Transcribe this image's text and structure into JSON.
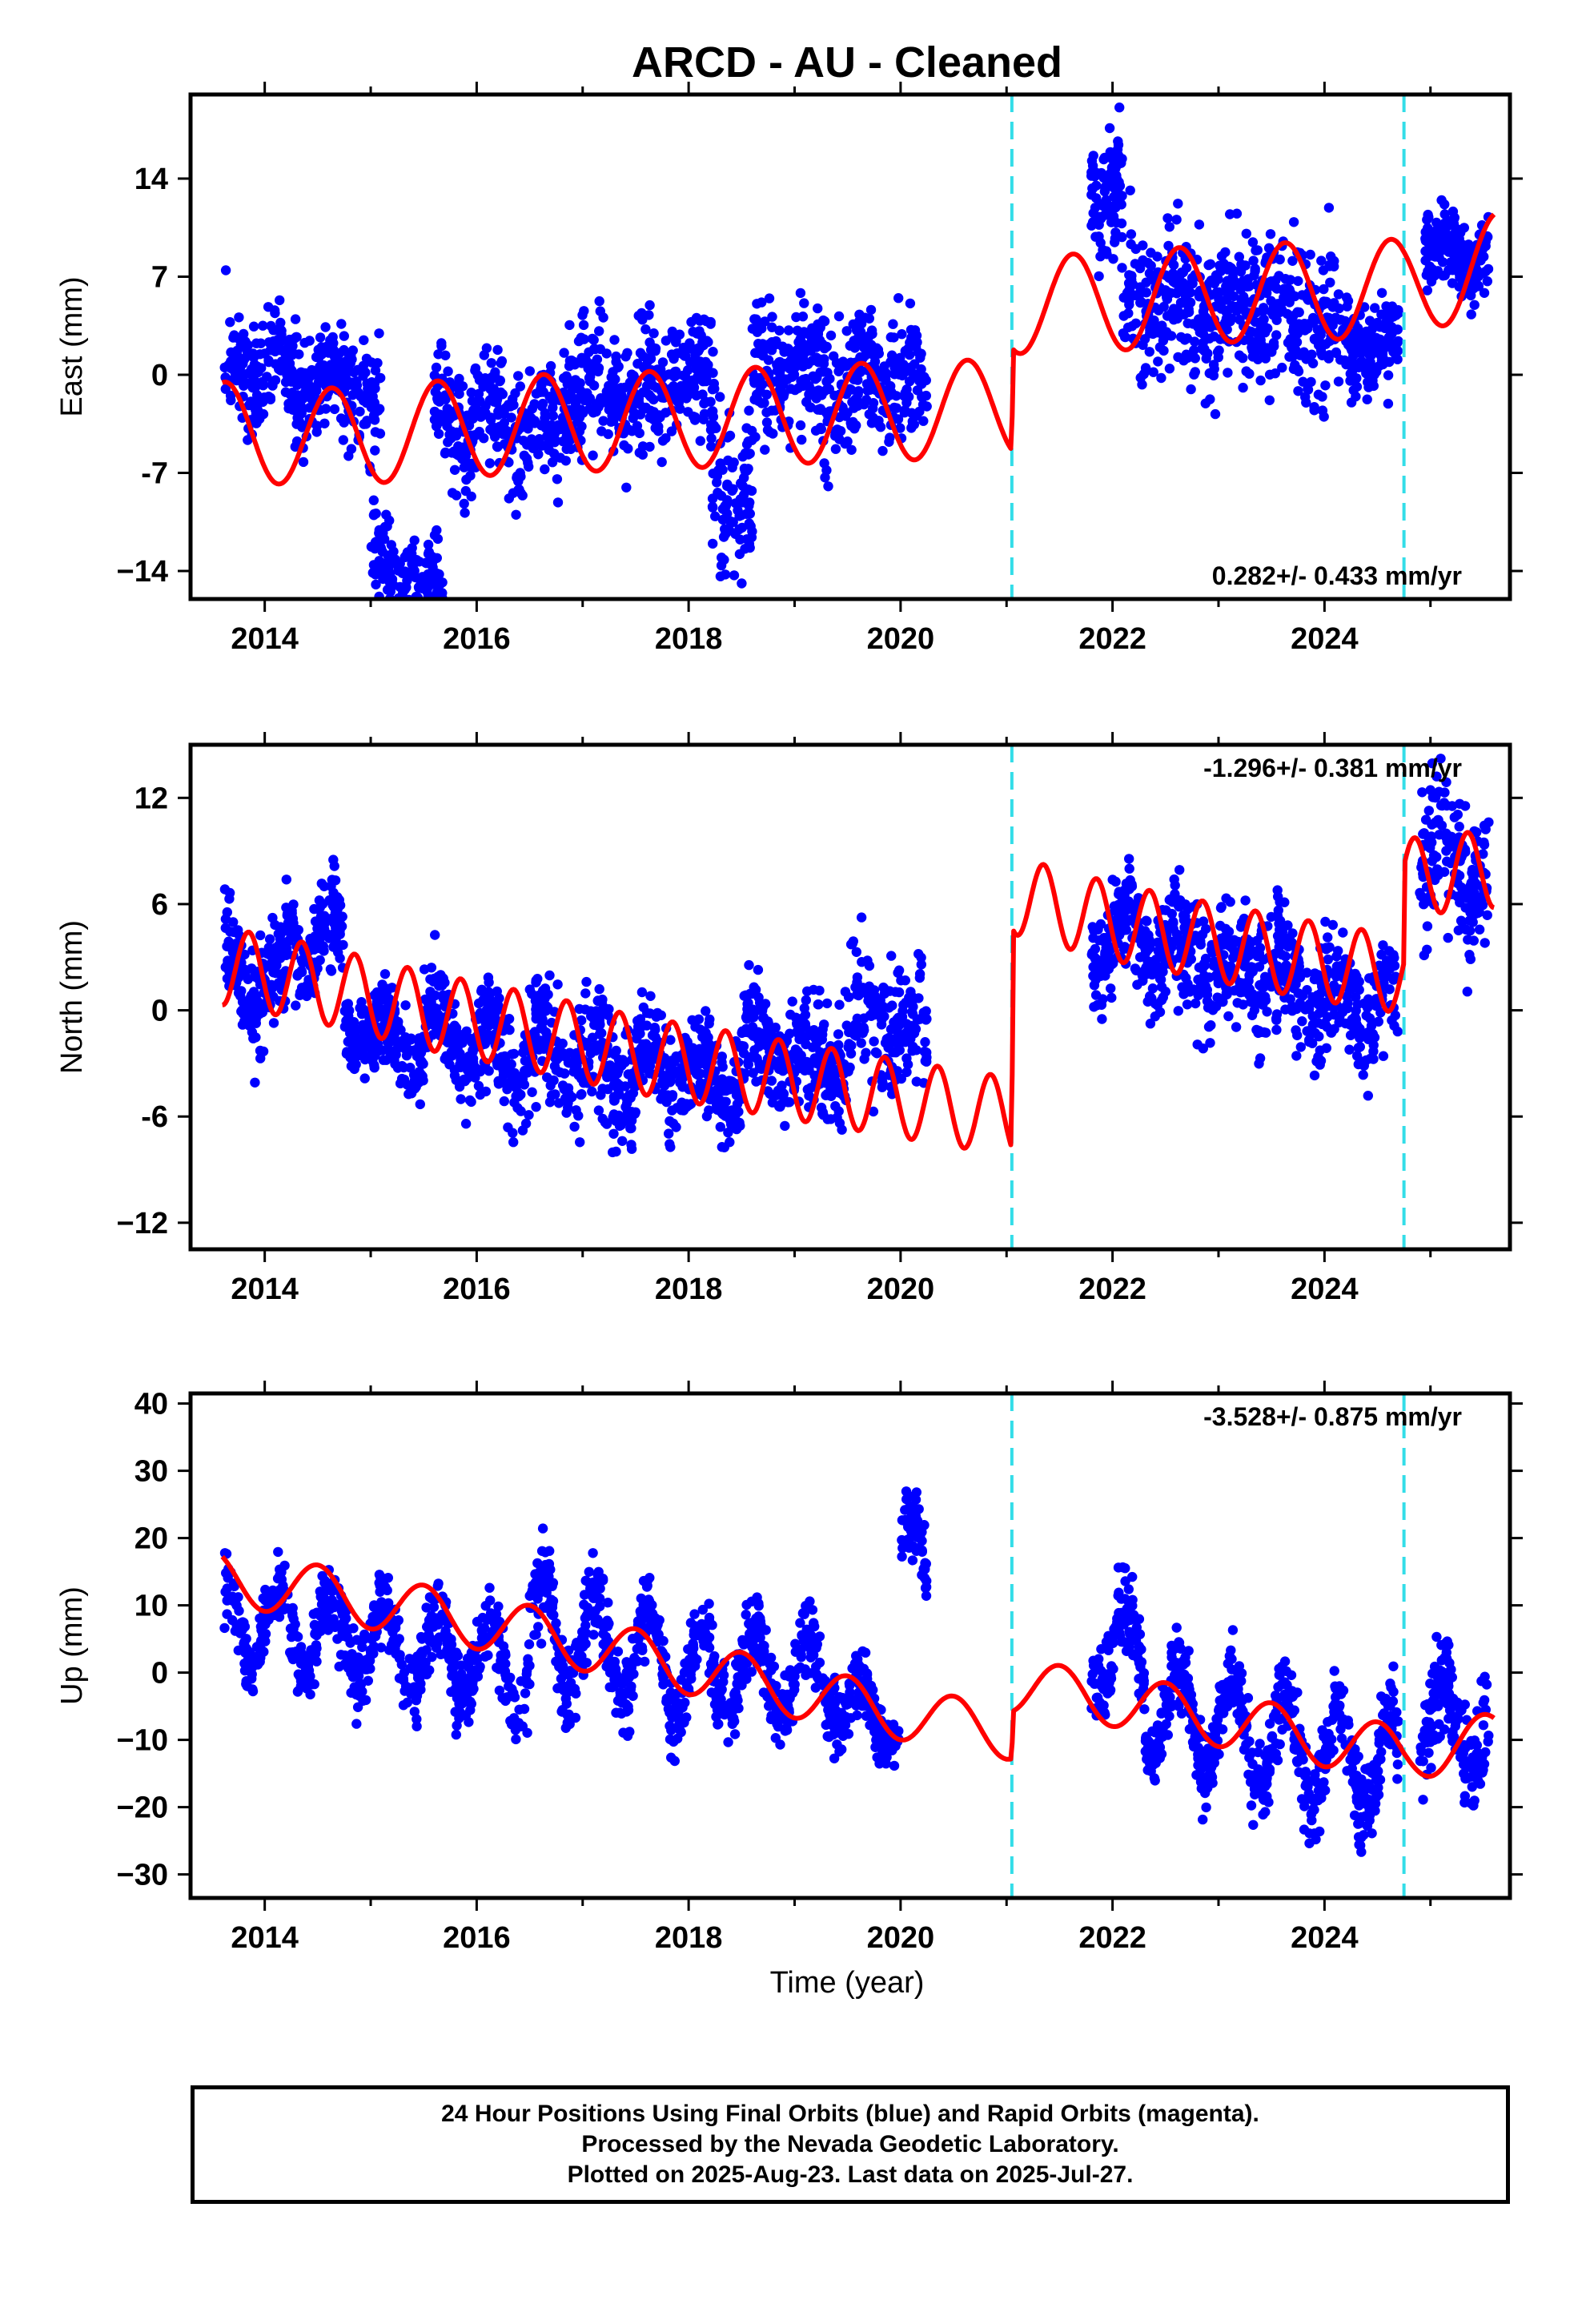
{
  "chart_data": {
    "title": "ARCD  - AU - Cleaned",
    "xlabel": "Time (year)",
    "x_ticks": [
      "2014",
      "2016",
      "2018",
      "2020",
      "2022",
      "2024"
    ],
    "xlim": [
      2013.3,
      2025.75
    ],
    "vertical_markers": {
      "color": "#33dde8",
      "x": [
        2021.05,
        2024.75
      ]
    },
    "colors": {
      "observed": "#0000ff",
      "model": "#ff0000",
      "frame": "#000000"
    },
    "panels": [
      {
        "type": "scatter",
        "ylabel": "East (mm)",
        "ylim": [
          -16,
          20
        ],
        "y_ticks": [
          -14,
          -7,
          0,
          7,
          14
        ],
        "y_tick_labels": [
          "−14",
          "-7",
          "0",
          "7",
          "14"
        ],
        "rate_text": "0.282+/- 0.433 mm/yr",
        "rate_position": "bottom-right",
        "model_series": {
          "name": "",
          "trend": [
            [
              2013.6,
              -4.0
            ],
            [
              2014.5,
              -4.5
            ],
            [
              2015.5,
              -4.0
            ],
            [
              2016.5,
              -3.5
            ],
            [
              2017.5,
              -3.3
            ],
            [
              2018.5,
              -3.0
            ],
            [
              2019.5,
              -2.7
            ],
            [
              2020.5,
              -2.5
            ],
            [
              2021.05,
              -2.3
            ],
            [
              2021.06,
              5.0
            ],
            [
              2022.0,
              5.2
            ],
            [
              2023.0,
              5.8
            ],
            [
              2024.0,
              6.0
            ],
            [
              2024.75,
              6.2
            ],
            [
              2025.6,
              8.0
            ]
          ],
          "amplitude": 3.5,
          "period": 1.0,
          "phase": 0.62
        },
        "observed_clusters": [
          [
            2013.62,
            2014.75,
            0.0,
            4.0,
            -6.0,
            3.0,
            300
          ],
          [
            2014.75,
            2015.1,
            -1.0,
            5.0,
            -5.0,
            2.0,
            80
          ],
          [
            2015.0,
            2015.7,
            -14.5,
            4.0,
            -10.0,
            0.0,
            160
          ],
          [
            2015.6,
            2016.8,
            -3.5,
            4.5,
            -5.0,
            3.0,
            300
          ],
          [
            2016.8,
            2017.8,
            -1.0,
            5.0,
            -5.0,
            2.0,
            260
          ],
          [
            2017.8,
            2018.25,
            0.0,
            4.5,
            -5.0,
            2.0,
            120
          ],
          [
            2018.2,
            2018.6,
            -8.0,
            7.0,
            -5.0,
            2.0,
            100
          ],
          [
            2018.6,
            2019.6,
            0.0,
            5.5,
            -5.0,
            1.5,
            260
          ],
          [
            2019.6,
            2020.25,
            0.0,
            5.0,
            -5.0,
            1.5,
            160
          ],
          [
            2021.8,
            2022.1,
            13.0,
            5.0,
            -5.0,
            2.0,
            100
          ],
          [
            2022.1,
            2023.1,
            5.0,
            6.0,
            -4.0,
            2.0,
            260
          ],
          [
            2023.1,
            2024.1,
            4.5,
            6.0,
            -5.0,
            2.0,
            260
          ],
          [
            2024.1,
            2024.7,
            2.0,
            4.0,
            -3.0,
            1.5,
            150
          ],
          [
            2024.95,
            2025.55,
            8.5,
            3.0,
            -3.0,
            2.0,
            180
          ]
        ]
      },
      {
        "type": "scatter",
        "ylabel": "North (mm)",
        "ylim": [
          -13.5,
          15
        ],
        "y_ticks": [
          -12,
          -6,
          0,
          6,
          12
        ],
        "y_tick_labels": [
          "−12",
          "-6",
          "0",
          "6",
          "12"
        ],
        "rate_text": "-1.296+/- 0.381 mm/yr",
        "rate_position": "top-right",
        "model_series": {
          "name": "",
          "trend": [
            [
              2013.6,
              2.5
            ],
            [
              2014.5,
              1.5
            ],
            [
              2015.5,
              0.0
            ],
            [
              2016.5,
              -1.2
            ],
            [
              2017.5,
              -2.5
            ],
            [
              2018.5,
              -3.5
            ],
            [
              2019.5,
              -4.5
            ],
            [
              2020.5,
              -5.5
            ],
            [
              2021.05,
              -6.0
            ],
            [
              2021.06,
              6.5
            ],
            [
              2022.0,
              5.0
            ],
            [
              2023.0,
              3.8
            ],
            [
              2024.0,
              2.7
            ],
            [
              2024.75,
              2.0
            ],
            [
              2024.76,
              7.5
            ],
            [
              2025.6,
              8.0
            ]
          ],
          "amplitude": 2.2,
          "period": 0.5,
          "phase": 0.55
        },
        "observed_clusters": [
          [
            2013.62,
            2014.2,
            1.5,
            3.0,
            -5.0,
            3.0,
            180
          ],
          [
            2014.2,
            2014.75,
            4.0,
            3.0,
            -4.0,
            3.0,
            150
          ],
          [
            2014.75,
            2015.5,
            -1.5,
            2.5,
            -7.0,
            2.0,
            200
          ],
          [
            2015.5,
            2016.5,
            -2.0,
            3.0,
            -8.0,
            3.0,
            260
          ],
          [
            2016.5,
            2017.5,
            -3.0,
            4.0,
            -9.0,
            3.0,
            260
          ],
          [
            2017.5,
            2018.5,
            -3.5,
            3.0,
            -6.0,
            2.0,
            260
          ],
          [
            2018.5,
            2019.5,
            -2.5,
            3.5,
            -5.0,
            2.5,
            260
          ],
          [
            2019.5,
            2020.25,
            -1.0,
            4.5,
            -3.0,
            2.0,
            170
          ],
          [
            2021.8,
            2022.6,
            4.0,
            3.0,
            -3.0,
            3.0,
            220
          ],
          [
            2022.6,
            2023.6,
            2.5,
            4.0,
            -3.0,
            2.5,
            260
          ],
          [
            2023.6,
            2024.7,
            0.5,
            3.5,
            -4.0,
            3.0,
            260
          ],
          [
            2024.9,
            2025.55,
            8.0,
            4.5,
            -6.0,
            3.0,
            170
          ]
        ]
      },
      {
        "type": "scatter",
        "ylabel": "Up (mm)",
        "ylim": [
          -33.5,
          41.5
        ],
        "y_ticks": [
          -30,
          -20,
          -10,
          0,
          10,
          20,
          30,
          40
        ],
        "y_tick_labels": [
          "−30",
          "−20",
          "−10",
          "0",
          "10",
          "20",
          "30",
          "40"
        ],
        "rate_text": "-3.528+/- 0.875 mm/yr",
        "rate_position": "top-right",
        "model_series": {
          "name": "",
          "trend": [
            [
              2013.6,
              14.0
            ],
            [
              2014.5,
              12.0
            ],
            [
              2015.5,
              9.0
            ],
            [
              2016.5,
              6.0
            ],
            [
              2017.5,
              2.5
            ],
            [
              2018.5,
              -1.0
            ],
            [
              2019.5,
              -4.5
            ],
            [
              2020.5,
              -7.5
            ],
            [
              2021.05,
              -9.0
            ],
            [
              2021.06,
              -2.0
            ],
            [
              2022.0,
              -4.0
            ],
            [
              2023.0,
              -7.0
            ],
            [
              2024.0,
              -10.0
            ],
            [
              2024.75,
              -12.0
            ],
            [
              2025.6,
              -10.0
            ]
          ],
          "amplitude": 4.0,
          "period": 1.0,
          "phase": 0.75
        },
        "observed_clusters": [
          [
            2013.62,
            2015.3,
            6.0,
            6.0,
            -15.0,
            12.0,
            380
          ],
          [
            2015.3,
            2016.5,
            2.0,
            6.0,
            -15.0,
            12.0,
            280
          ],
          [
            2016.5,
            2017.7,
            4.0,
            7.0,
            -15.0,
            15.0,
            280
          ],
          [
            2017.7,
            2018.3,
            0.0,
            6.0,
            -12.0,
            15.0,
            140
          ],
          [
            2018.3,
            2019.4,
            0.0,
            6.0,
            -12.0,
            12.0,
            250
          ],
          [
            2019.4,
            2020.0,
            -6.0,
            5.0,
            -12.0,
            8.0,
            140
          ],
          [
            2020.0,
            2020.25,
            16.0,
            6.0,
            -12.0,
            12.0,
            60
          ],
          [
            2021.8,
            2022.3,
            3.0,
            7.0,
            -12.0,
            15.0,
            120
          ],
          [
            2022.3,
            2023.3,
            -7.0,
            6.0,
            -13.0,
            15.0,
            260
          ],
          [
            2023.3,
            2024.7,
            -12.0,
            7.0,
            -18.0,
            15.0,
            330
          ],
          [
            2024.9,
            2025.55,
            -8.0,
            8.0,
            -18.0,
            12.0,
            160
          ]
        ]
      }
    ]
  },
  "footer": {
    "line1": "24 Hour Positions Using Final Orbits (blue) and Rapid Orbits (magenta).",
    "line2": "Processed by the Nevada Geodetic Laboratory.",
    "line3": "Plotted on 2025-Aug-23. Last data on 2025-Jul-27."
  }
}
